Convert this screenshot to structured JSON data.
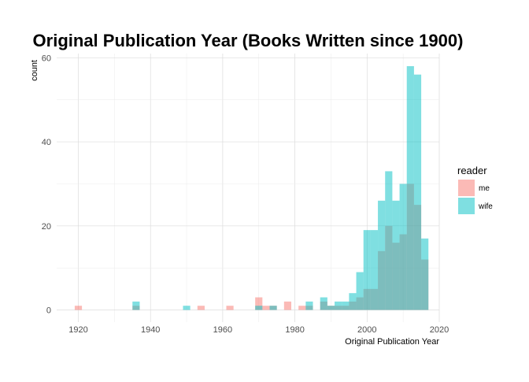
{
  "chart_data": {
    "type": "histogram",
    "title": "Original Publication Year (Books Written since 1900)",
    "xlabel": "Original Publication Year",
    "ylabel": "count",
    "xlim": [
      1914,
      2020
    ],
    "ylim": [
      -2.9,
      61
    ],
    "x_ticks": [
      1920,
      1940,
      1960,
      1980,
      2000,
      2020
    ],
    "y_ticks": [
      0,
      20,
      40,
      60
    ],
    "grid": true,
    "bin_width": 2,
    "legend": {
      "title": "reader",
      "position": "right"
    },
    "series": [
      {
        "name": "me",
        "color": "#F8766D",
        "bins": [
          {
            "x": 1920,
            "count": 1
          },
          {
            "x": 1936,
            "count": 1
          },
          {
            "x": 1954,
            "count": 1
          },
          {
            "x": 1962,
            "count": 1
          },
          {
            "x": 1970,
            "count": 3
          },
          {
            "x": 1972,
            "count": 1
          },
          {
            "x": 1974,
            "count": 1
          },
          {
            "x": 1978,
            "count": 2
          },
          {
            "x": 1982,
            "count": 1
          },
          {
            "x": 1984,
            "count": 1
          },
          {
            "x": 1988,
            "count": 2
          },
          {
            "x": 1990,
            "count": 1
          },
          {
            "x": 1992,
            "count": 1
          },
          {
            "x": 1994,
            "count": 1
          },
          {
            "x": 1996,
            "count": 2
          },
          {
            "x": 1998,
            "count": 3
          },
          {
            "x": 2000,
            "count": 5
          },
          {
            "x": 2002,
            "count": 5
          },
          {
            "x": 2004,
            "count": 14
          },
          {
            "x": 2006,
            "count": 20
          },
          {
            "x": 2008,
            "count": 16
          },
          {
            "x": 2010,
            "count": 18
          },
          {
            "x": 2012,
            "count": 30
          },
          {
            "x": 2014,
            "count": 25
          },
          {
            "x": 2016,
            "count": 12
          }
        ]
      },
      {
        "name": "wife",
        "color": "#00BFC4",
        "bins": [
          {
            "x": 1936,
            "count": 2
          },
          {
            "x": 1950,
            "count": 1
          },
          {
            "x": 1970,
            "count": 1
          },
          {
            "x": 1974,
            "count": 1
          },
          {
            "x": 1984,
            "count": 2
          },
          {
            "x": 1988,
            "count": 3
          },
          {
            "x": 1990,
            "count": 1
          },
          {
            "x": 1992,
            "count": 2
          },
          {
            "x": 1994,
            "count": 2
          },
          {
            "x": 1996,
            "count": 4
          },
          {
            "x": 1998,
            "count": 9
          },
          {
            "x": 2000,
            "count": 19
          },
          {
            "x": 2002,
            "count": 19
          },
          {
            "x": 2004,
            "count": 26
          },
          {
            "x": 2006,
            "count": 33
          },
          {
            "x": 2008,
            "count": 26
          },
          {
            "x": 2010,
            "count": 30
          },
          {
            "x": 2012,
            "count": 58
          },
          {
            "x": 2014,
            "count": 56
          },
          {
            "x": 2016,
            "count": 17
          }
        ]
      }
    ]
  }
}
